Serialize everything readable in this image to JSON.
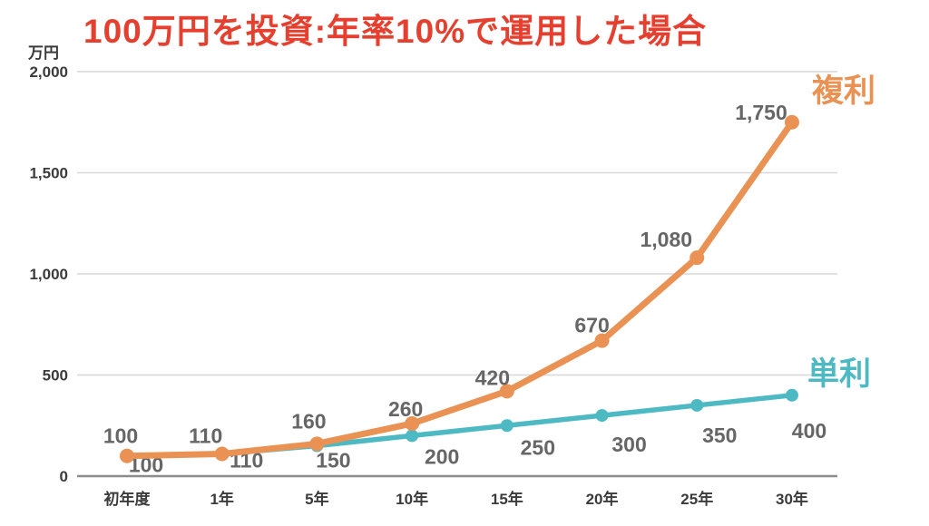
{
  "title": "100万円を投資:年率10%で運用した場合",
  "colors": {
    "compound": "#E99254",
    "simple": "#4DBAC3",
    "title": "#E5402F",
    "data_label": "#666666",
    "tick_label": "#3b3b3b",
    "gridline": "#d7d7d7",
    "axis": "#8c8c8c"
  },
  "chart_data": {
    "type": "line",
    "title": "100万円を投資:年率10%で運用した場合",
    "categories": [
      "初年度",
      "1年",
      "5年",
      "10年",
      "15年",
      "20年",
      "25年",
      "30年"
    ],
    "series": [
      {
        "name": "複利",
        "color_key": "compound",
        "values": [
          100,
          110,
          160,
          260,
          420,
          670,
          1080,
          1750
        ],
        "labels": [
          "100",
          "110",
          "160",
          "260",
          "420",
          "670",
          "1,080",
          "1,750"
        ]
      },
      {
        "name": "単利",
        "color_key": "simple",
        "values": [
          100,
          110,
          150,
          200,
          250,
          300,
          350,
          400
        ],
        "labels": [
          "100",
          "110",
          "150",
          "200",
          "250",
          "300",
          "350",
          "400"
        ]
      }
    ],
    "xlabel": "",
    "ylabel": "万円",
    "ylim": [
      0,
      2000
    ],
    "yticks": [
      0,
      500,
      1000,
      1500,
      2000
    ],
    "ytick_labels": [
      "0",
      "500",
      "1,000",
      "1,500",
      "2,000"
    ],
    "grid": true,
    "legend_position": "line-end"
  }
}
